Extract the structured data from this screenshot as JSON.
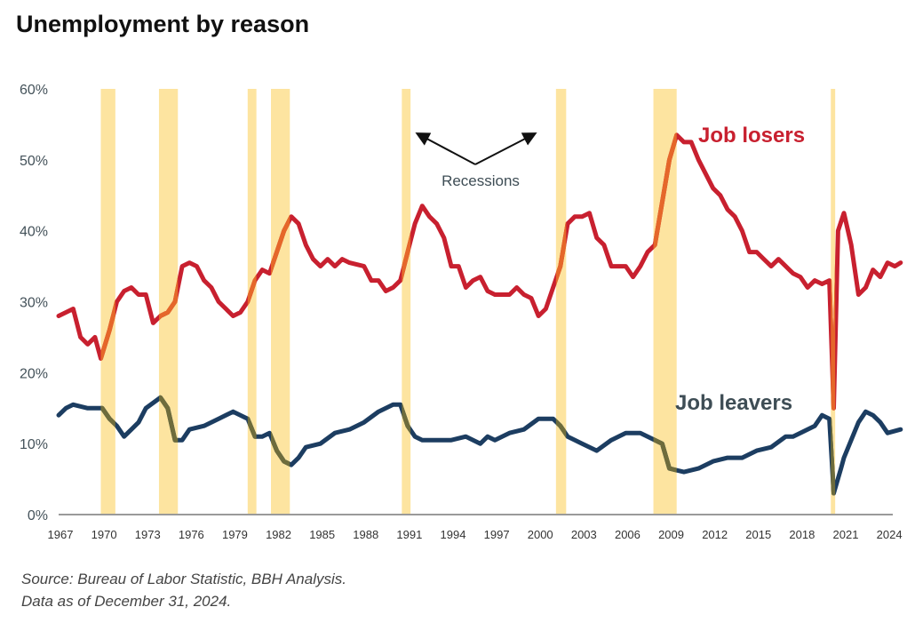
{
  "chart_data": {
    "type": "line",
    "title": "Unemployment by reason",
    "xlabel": "",
    "ylabel": "",
    "xlim": [
      1967,
      2025
    ],
    "ylim": [
      0,
      60
    ],
    "yticks": [
      "0%",
      "10%",
      "20%",
      "30%",
      "40%",
      "50%",
      "60%"
    ],
    "xticks": [
      "1967",
      "1970",
      "1973",
      "1976",
      "1979",
      "1982",
      "1985",
      "1988",
      "1991",
      "1994",
      "1997",
      "2000",
      "2003",
      "2006",
      "2009",
      "2012",
      "2015",
      "2018",
      "2021",
      "2024"
    ],
    "recessions": [
      [
        1969.9,
        1970.9
      ],
      [
        1973.9,
        1975.2
      ],
      [
        1980.0,
        1980.6
      ],
      [
        1981.6,
        1982.9
      ],
      [
        1990.6,
        1991.2
      ],
      [
        2001.2,
        2001.9
      ],
      [
        2007.9,
        2009.5
      ],
      [
        2020.1,
        2020.4
      ]
    ],
    "recession_label": "Recessions",
    "series": [
      {
        "name": "Job losers",
        "color": "#c8202f",
        "recession_color": "#e5672a",
        "x": [
          1967,
          1967.5,
          1968,
          1968.5,
          1969,
          1969.5,
          1969.9,
          1970.5,
          1971,
          1971.5,
          1972,
          1972.5,
          1973,
          1973.5,
          1974,
          1974.5,
          1975,
          1975.5,
          1976,
          1976.5,
          1977,
          1977.5,
          1978,
          1978.5,
          1979,
          1979.5,
          1980,
          1980.5,
          1981,
          1981.5,
          1982,
          1982.5,
          1983,
          1983.5,
          1984,
          1984.5,
          1985,
          1985.5,
          1986,
          1986.5,
          1987,
          1988,
          1988.5,
          1989,
          1989.5,
          1990,
          1990.5,
          1991,
          1991.5,
          1992,
          1992.5,
          1993,
          1993.5,
          1994,
          1994.5,
          1995,
          1995.5,
          1996,
          1996.5,
          1997,
          1998,
          1998.5,
          1999,
          1999.5,
          2000,
          2000.5,
          2001,
          2001.5,
          2002,
          2002.5,
          2003,
          2003.5,
          2004,
          2004.5,
          2005,
          2005.5,
          2006,
          2006.5,
          2007,
          2007.5,
          2008,
          2008.5,
          2009,
          2009.5,
          2010,
          2010.5,
          2011,
          2011.5,
          2012,
          2012.5,
          2013,
          2013.5,
          2014,
          2014.5,
          2015,
          2015.5,
          2016,
          2016.5,
          2017,
          2017.5,
          2018,
          2018.5,
          2019,
          2019.5,
          2020,
          2020.3,
          2020.6,
          2021,
          2021.5,
          2022,
          2022.5,
          2023,
          2023.5,
          2024,
          2024.5,
          2024.9
        ],
        "values": [
          28,
          28.5,
          29,
          25,
          24,
          25,
          22,
          26,
          30,
          31.5,
          32,
          31,
          31,
          27,
          28,
          28.5,
          30,
          35,
          35.5,
          35,
          33,
          32,
          30,
          29,
          28,
          28.5,
          30,
          33,
          34.5,
          34,
          37,
          40,
          42,
          41,
          38,
          36,
          35,
          36,
          35,
          36,
          35.5,
          35,
          33,
          33,
          31.5,
          32,
          33,
          37,
          41,
          43.5,
          42,
          41,
          39,
          35,
          35,
          32,
          33,
          33.5,
          31.5,
          31,
          31,
          32,
          31,
          30.5,
          28,
          29,
          32,
          35,
          41,
          42,
          42,
          42.5,
          39,
          38,
          35,
          35,
          35,
          33.5,
          35,
          37,
          38,
          44,
          50,
          53.5,
          52.5,
          52.5,
          50,
          48,
          46,
          45,
          43,
          42,
          40,
          37,
          37,
          36,
          35,
          36,
          35,
          34,
          33.5,
          32,
          33,
          32.5,
          33,
          15,
          40,
          42.5,
          38,
          31,
          32,
          34.5,
          33.5,
          35.5,
          35,
          35.5
        ]
      },
      {
        "name": "Job leavers",
        "color": "#1c3d61",
        "recession_color": "#6e6c3c",
        "x": [
          1967,
          1967.5,
          1968,
          1969,
          1970,
          1970.5,
          1971,
          1971.5,
          1972,
          1972.5,
          1973,
          1974,
          1974.5,
          1975,
          1975.5,
          1976,
          1977,
          1978,
          1979,
          1980,
          1980.5,
          1981,
          1981.5,
          1982,
          1982.5,
          1983,
          1983.5,
          1984,
          1985,
          1986,
          1987,
          1988,
          1989,
          1990,
          1990.5,
          1991,
          1991.5,
          1992,
          1993,
          1994,
          1995,
          1996,
          1996.5,
          1997,
          1998,
          1999,
          2000,
          2001,
          2001.5,
          2002,
          2003,
          2004,
          2005,
          2006,
          2007,
          2008,
          2008.5,
          2009,
          2010,
          2011,
          2012,
          2013,
          2014,
          2015,
          2016,
          2017,
          2017.5,
          2018,
          2019,
          2019.5,
          2020,
          2020.3,
          2020.8,
          2021,
          2022,
          2022.5,
          2023,
          2023.5,
          2024,
          2024.9
        ],
        "values": [
          14,
          15,
          15.5,
          15,
          15,
          13.5,
          12.5,
          11,
          12,
          13,
          15,
          16.5,
          15,
          10.5,
          10.5,
          12,
          12.5,
          13.5,
          14.5,
          13.5,
          11,
          11,
          11.5,
          9,
          7.5,
          7,
          8,
          9.5,
          10,
          11.5,
          12,
          13,
          14.5,
          15.5,
          15.5,
          12.5,
          11,
          10.5,
          10.5,
          10.5,
          11,
          10,
          11,
          10.5,
          11.5,
          12,
          13.5,
          13.5,
          12.5,
          11,
          10,
          9,
          10.5,
          11.5,
          11.5,
          10.5,
          10,
          6.5,
          6,
          6.5,
          7.5,
          8,
          8,
          9,
          9.5,
          11,
          11,
          11.5,
          12.5,
          14,
          13.5,
          3,
          6.5,
          8,
          13,
          14.5,
          14,
          13,
          11.5,
          12
        ]
      }
    ]
  },
  "source": "Source: Bureau of Labor Statistic, BBH Analysis.",
  "asof": "Data as of December 31, 2024."
}
